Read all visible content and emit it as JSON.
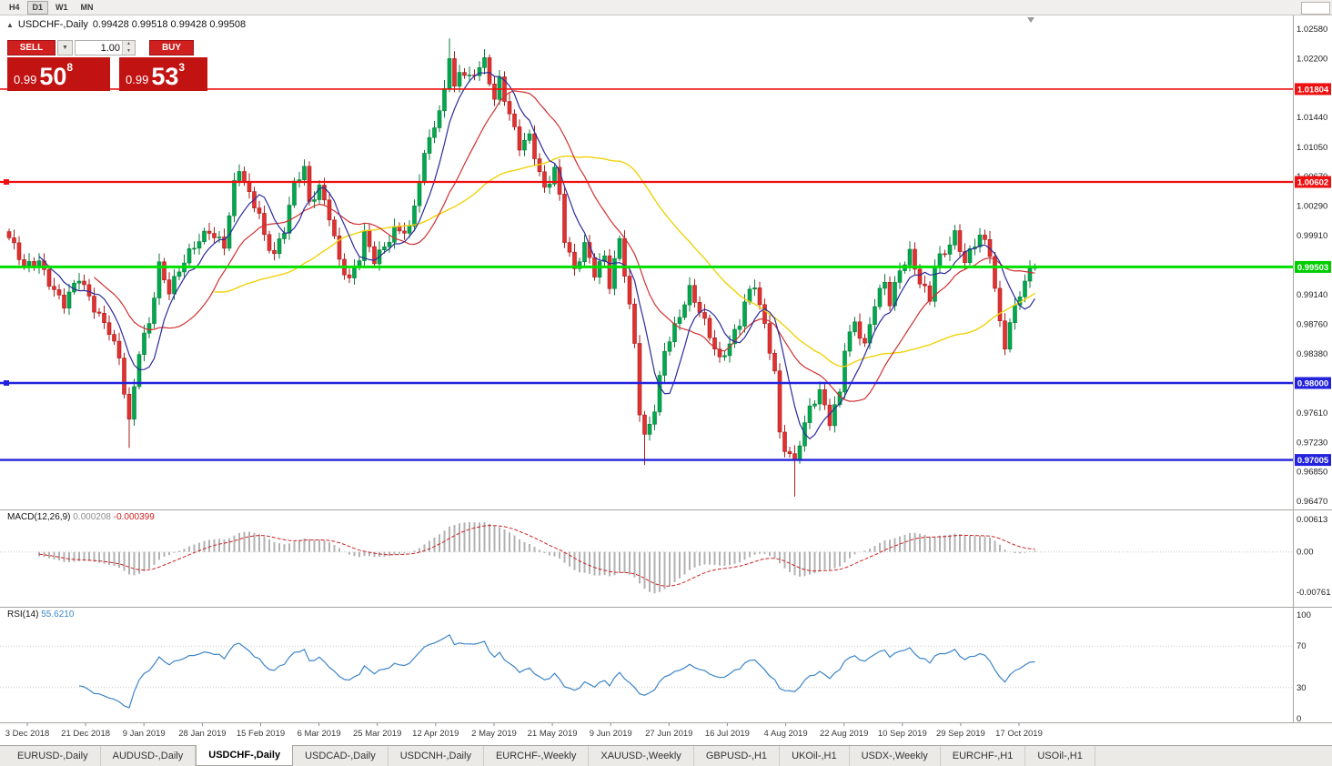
{
  "toolbar": {
    "timeframes": [
      "H4",
      "D1",
      "W1",
      "MN"
    ],
    "active": "D1"
  },
  "icons": {
    "title_marker": "▲",
    "dropdown_caret": "▼",
    "spinner_up": "▲",
    "spinner_down": "▼"
  },
  "chart": {
    "title_symbol": "USDCHF-,Daily",
    "title_ohlc": "0.99428 0.99518 0.99428 0.99508"
  },
  "trade_widget": {
    "sell_label": "SELL",
    "buy_label": "BUY",
    "volume": "1.00",
    "sell_price": {
      "prefix": "0.99",
      "big": "50",
      "sup": "8"
    },
    "buy_price": {
      "prefix": "0.99",
      "big": "53",
      "sup": "3"
    }
  },
  "price_axis": {
    "ticks": [
      {
        "label": "1.02580",
        "price": 1.0258
      },
      {
        "label": "1.02200",
        "price": 1.022
      },
      {
        "label": "1.01440",
        "price": 1.0144
      },
      {
        "label": "1.01050",
        "price": 1.0105
      },
      {
        "label": "1.00670",
        "price": 1.0067
      },
      {
        "label": "1.00290",
        "price": 1.0029
      },
      {
        "label": "0.99910",
        "price": 0.9991
      },
      {
        "label": "0.99140",
        "price": 0.9914
      },
      {
        "label": "0.98760",
        "price": 0.9876
      },
      {
        "label": "0.98380",
        "price": 0.9838
      },
      {
        "label": "0.97610",
        "price": 0.9761
      },
      {
        "label": "0.97230",
        "price": 0.9723
      },
      {
        "label": "0.96850",
        "price": 0.9685
      },
      {
        "label": "0.96470",
        "price": 0.9647
      }
    ],
    "badges": [
      {
        "label": "1.01804",
        "price": 1.01804,
        "color": "#ee1111"
      },
      {
        "label": "1.00602",
        "price": 1.00602,
        "color": "#ee1111"
      },
      {
        "label": "0.99503",
        "price": 0.99503,
        "color": "#00cc00"
      },
      {
        "label": "0.98000",
        "price": 0.98,
        "color": "#2222dd"
      },
      {
        "label": "0.97005",
        "price": 0.97005,
        "color": "#2222dd"
      }
    ]
  },
  "indicators": {
    "macd": {
      "name": "MACD(12,26,9)",
      "value_main": "0.000208",
      "value_signal": "-0.000399",
      "axis": [
        {
          "label": "0.00613",
          "value": 0.00613
        },
        {
          "label": "0.00",
          "value": 0
        },
        {
          "label": "-0.00761",
          "value": -0.00761
        }
      ]
    },
    "rsi": {
      "name": "RSI(14)",
      "value": "55.6210",
      "axis": [
        {
          "label": "100",
          "value": 100
        },
        {
          "label": "70",
          "value": 70
        },
        {
          "label": "30",
          "value": 30
        },
        {
          "label": "0",
          "value": 0
        }
      ],
      "levels": [
        70,
        30
      ]
    }
  },
  "date_axis": [
    "3 Dec 2018",
    "21 Dec 2018",
    "9 Jan 2019",
    "28 Jan 2019",
    "15 Feb 2019",
    "6 Mar 2019",
    "25 Mar 2019",
    "12 Apr 2019",
    "2 May 2019",
    "21 May 2019",
    "9 Jun 2019",
    "27 Jun 2019",
    "16 Jul 2019",
    "4 Aug 2019",
    "22 Aug 2019",
    "10 Sep 2019",
    "29 Sep 2019",
    "17 Oct 2019"
  ],
  "tabs": [
    {
      "label": "EURUSD-,Daily",
      "active": false
    },
    {
      "label": "AUDUSD-,Daily",
      "active": false
    },
    {
      "label": "USDCHF-,Daily",
      "active": true
    },
    {
      "label": "USDCAD-,Daily",
      "active": false
    },
    {
      "label": "USDCNH-,Daily",
      "active": false
    },
    {
      "label": "EURCHF-,Weekly",
      "active": false
    },
    {
      "label": "XAUUSD-,Weekly",
      "active": false
    },
    {
      "label": "GBPUSD-,H1",
      "active": false
    },
    {
      "label": "UKOil-,H1",
      "active": false
    },
    {
      "label": "USDX-,Weekly",
      "active": false
    },
    {
      "label": "EURCHF-,H1",
      "active": false
    },
    {
      "label": "USOil-,H1",
      "active": false
    }
  ],
  "chart_data": {
    "type": "candlestick",
    "symbol": "USDCHF",
    "timeframe": "Daily",
    "bars": 206,
    "last_close": 0.99508,
    "price_range": [
      0.9647,
      1.0258
    ],
    "up_color": "#00a94f",
    "up_stroke": "#0a7c38",
    "down_color": "#e23131",
    "down_stroke": "#a81d1d",
    "close_anchors": [
      [
        0,
        0.9985
      ],
      [
        3,
        0.995
      ],
      [
        6,
        0.996
      ],
      [
        9,
        0.992
      ],
      [
        11,
        0.99
      ],
      [
        14,
        0.9935
      ],
      [
        17,
        0.99
      ],
      [
        20,
        0.987
      ],
      [
        22,
        0.983
      ],
      [
        24,
        0.9745
      ],
      [
        26,
        0.984
      ],
      [
        28,
        0.988
      ],
      [
        30,
        0.9955
      ],
      [
        32,
        0.992
      ],
      [
        35,
        0.9955
      ],
      [
        38,
        0.9985
      ],
      [
        40,
        1.0
      ],
      [
        43,
        0.998
      ],
      [
        45,
        1.0055
      ],
      [
        46,
        1.0075
      ],
      [
        48,
        1.004
      ],
      [
        50,
        1.002
      ],
      [
        51,
        0.999
      ],
      [
        53,
        0.997
      ],
      [
        55,
        1.0
      ],
      [
        57,
        1.0055
      ],
      [
        59,
        1.0075
      ],
      [
        60,
        1.003
      ],
      [
        62,
        1.0055
      ],
      [
        64,
        1.002
      ],
      [
        66,
        0.996
      ],
      [
        68,
        0.993
      ],
      [
        70,
        0.996
      ],
      [
        71,
        0.999
      ],
      [
        73,
        0.996
      ],
      [
        75,
        0.998
      ],
      [
        77,
        1.0
      ],
      [
        80,
        0.9995
      ],
      [
        82,
        1.006
      ],
      [
        84,
        1.012
      ],
      [
        86,
        1.015
      ],
      [
        88,
        1.0225
      ],
      [
        89,
        1.018
      ],
      [
        90,
        1.0205
      ],
      [
        92,
        1.019
      ],
      [
        95,
        1.0215
      ],
      [
        97,
        1.017
      ],
      [
        98,
        1.0195
      ],
      [
        100,
        1.015
      ],
      [
        102,
        1.0105
      ],
      [
        104,
        1.0115
      ],
      [
        106,
        1.007
      ],
      [
        107,
        1.005
      ],
      [
        109,
        1.008
      ],
      [
        110,
        1.0045
      ],
      [
        111,
        0.999
      ],
      [
        113,
        0.9945
      ],
      [
        115,
        0.9975
      ],
      [
        117,
        0.994
      ],
      [
        119,
        0.9965
      ],
      [
        120,
        0.993
      ],
      [
        122,
        0.999
      ],
      [
        123,
        0.9945
      ],
      [
        125,
        0.985
      ],
      [
        126,
        0.976
      ],
      [
        127,
        0.9725
      ],
      [
        129,
        0.9765
      ],
      [
        131,
        0.9845
      ],
      [
        133,
        0.9875
      ],
      [
        135,
        0.9905
      ],
      [
        136,
        0.992
      ],
      [
        138,
        0.989
      ],
      [
        140,
        0.986
      ],
      [
        142,
        0.983
      ],
      [
        144,
        0.9855
      ],
      [
        146,
        0.988
      ],
      [
        147,
        0.9905
      ],
      [
        149,
        0.9925
      ],
      [
        151,
        0.987
      ],
      [
        153,
        0.9815
      ],
      [
        154,
        0.9735
      ],
      [
        155,
        0.972
      ],
      [
        157,
        0.97
      ],
      [
        158,
        0.9725
      ],
      [
        160,
        0.9765
      ],
      [
        162,
        0.9785
      ],
      [
        164,
        0.975
      ],
      [
        166,
        0.979
      ],
      [
        167,
        0.985
      ],
      [
        169,
        0.988
      ],
      [
        171,
        0.9845
      ],
      [
        173,
        0.99
      ],
      [
        175,
        0.993
      ],
      [
        176,
        0.9905
      ],
      [
        178,
        0.995
      ],
      [
        180,
        0.997
      ],
      [
        182,
        0.993
      ],
      [
        184,
        0.9905
      ],
      [
        185,
        0.995
      ],
      [
        187,
        0.997
      ],
      [
        189,
        0.9995
      ],
      [
        191,
        0.996
      ],
      [
        193,
        0.998
      ],
      [
        194,
        0.999
      ],
      [
        196,
        0.9965
      ],
      [
        198,
        0.9875
      ],
      [
        199,
        0.985
      ],
      [
        200,
        0.988
      ],
      [
        202,
        0.992
      ],
      [
        204,
        0.9945
      ],
      [
        205,
        0.9951
      ]
    ],
    "wick_overrides": {
      "24": {
        "low": 0.9716
      },
      "88": {
        "high": 1.0246
      },
      "95": {
        "high": 1.0232
      },
      "127": {
        "low": 0.9694
      },
      "157": {
        "low": 0.9653
      }
    },
    "moving_averages": [
      {
        "period": 7,
        "color": "#2a2a9c"
      },
      {
        "period": 18,
        "color": "#d03030"
      },
      {
        "period": 42,
        "color": "#f0d20a"
      }
    ],
    "levels": [
      {
        "name": "resistance-line-upper",
        "price": 1.01804,
        "color": "#ee1111",
        "width": 1.6,
        "marker": false
      },
      {
        "name": "resistance-line-mid",
        "price": 1.00602,
        "color": "#ee1111",
        "width": 2.2,
        "marker": true
      },
      {
        "name": "current-bid-line",
        "price": 0.99503,
        "color": "#00df00",
        "width": 3,
        "marker": false
      },
      {
        "name": "support-line-upper",
        "price": 0.98,
        "color": "#2222dd",
        "width": 2.4,
        "marker": true
      },
      {
        "name": "support-line-lower",
        "price": 0.97005,
        "color": "#2222dd",
        "width": 2.4,
        "marker": false
      }
    ],
    "macd": {
      "fast": 12,
      "slow": 26,
      "signal_period": 9,
      "axis_range": [
        -0.00761,
        0.00613
      ]
    },
    "rsi": {
      "period": 14,
      "axis_range": [
        0,
        100
      ]
    }
  }
}
